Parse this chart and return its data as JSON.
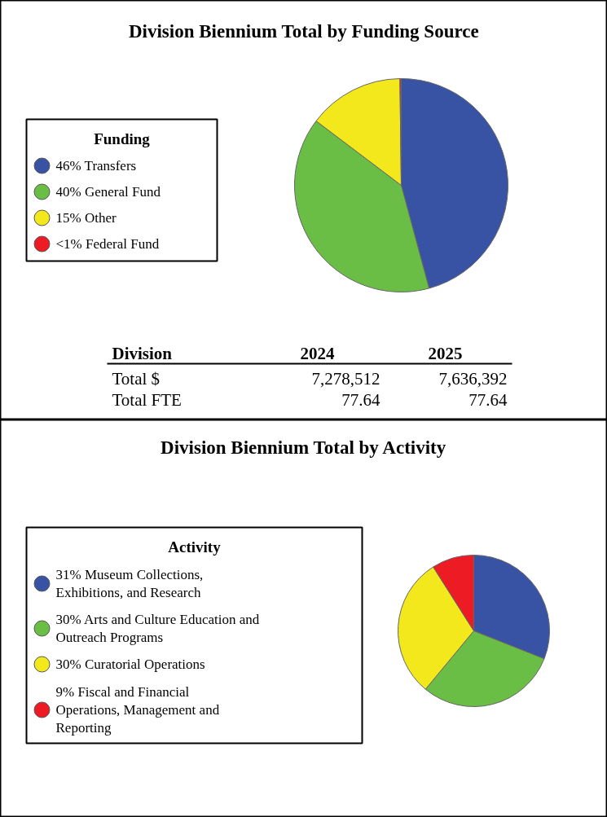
{
  "chart_data": [
    {
      "type": "pie",
      "title": "Division Biennium Total by Funding Source",
      "legend_title": "Funding",
      "legend": "left",
      "categories": [
        "Transfers",
        "General Fund",
        "Other",
        "Federal Fund"
      ],
      "values": [
        45.8,
        39.5,
        14.5,
        0.2
      ],
      "value_labels": [
        "46%",
        "40%",
        "15%",
        "<1%"
      ],
      "colors": [
        "#3953a4",
        "#6abd45",
        "#f3e81c",
        "#ed1c24"
      ]
    },
    {
      "type": "other",
      "categories": [
        "Division",
        "2024",
        "2025"
      ],
      "y_categories": [
        "Total $",
        "Total FTE"
      ],
      "cell_labels": [
        [
          "7,278,512",
          "7,636,392"
        ],
        [
          "77.64",
          "77.64"
        ]
      ]
    },
    {
      "type": "pie",
      "title": "Division Biennium Total by Activity",
      "legend_title": "Activity",
      "legend": "left",
      "categories": [
        "Museum Collections, Exhibitions, and Research",
        "Arts and Culture Education and Outreach Programs",
        "Curatorial Operations",
        "Fiscal and Financial Operations, Management and Reporting"
      ],
      "values": [
        31,
        30,
        30,
        9
      ],
      "value_labels": [
        "31%",
        "30%",
        "30%",
        "9%"
      ],
      "colors": [
        "#3953a4",
        "#6abd45",
        "#f3e81c",
        "#ed1c24"
      ]
    }
  ]
}
